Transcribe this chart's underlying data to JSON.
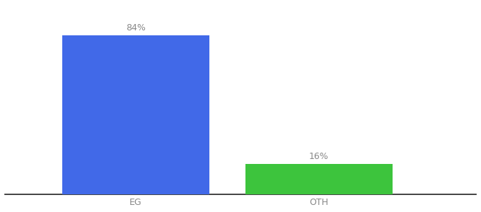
{
  "categories": [
    "EG",
    "OTH"
  ],
  "values": [
    84,
    16
  ],
  "bar_colors": [
    "#4169e8",
    "#3dc43d"
  ],
  "bar_labels": [
    "84%",
    "16%"
  ],
  "background_color": "#ffffff",
  "label_color": "#888888",
  "label_fontsize": 9,
  "tick_fontsize": 9,
  "ylim": [
    0,
    100
  ],
  "bar_width": 0.28,
  "x_positions": [
    0.3,
    0.65
  ]
}
